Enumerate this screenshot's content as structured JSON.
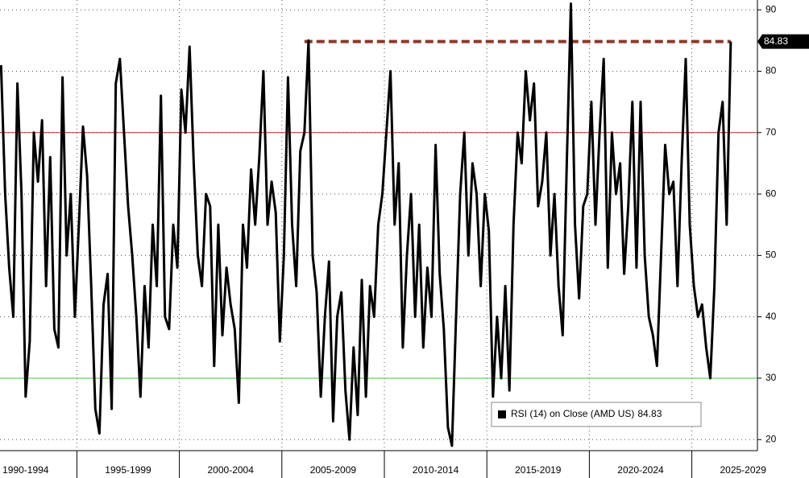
{
  "chart_data": {
    "type": "line",
    "x": [
      1991.3,
      1991.5,
      1991.7,
      1991.9,
      1992.1,
      1992.3,
      1992.5,
      1992.7,
      1992.9,
      1993.1,
      1993.3,
      1993.5,
      1993.7,
      1993.9,
      1994.1,
      1994.3,
      1994.5,
      1994.7,
      1994.9,
      1995.1,
      1995.3,
      1995.5,
      1995.7,
      1995.9,
      1996.1,
      1996.3,
      1996.5,
      1996.7,
      1996.9,
      1997.1,
      1997.3,
      1997.5,
      1997.7,
      1997.9,
      1998.1,
      1998.3,
      1998.5,
      1998.7,
      1998.9,
      1999.1,
      1999.3,
      1999.5,
      1999.7,
      1999.9,
      2000.1,
      2000.3,
      2000.5,
      2000.7,
      2000.9,
      2001.1,
      2001.3,
      2001.5,
      2001.7,
      2001.9,
      2002.1,
      2002.3,
      2002.5,
      2002.7,
      2002.9,
      2003.1,
      2003.3,
      2003.5,
      2003.7,
      2003.9,
      2004.1,
      2004.3,
      2004.5,
      2004.7,
      2004.9,
      2005.1,
      2005.3,
      2005.5,
      2005.7,
      2005.9,
      2006.1,
      2006.3,
      2006.5,
      2006.7,
      2006.9,
      2007.1,
      2007.3,
      2007.5,
      2007.7,
      2007.9,
      2008.1,
      2008.3,
      2008.5,
      2008.7,
      2008.9,
      2009.1,
      2009.3,
      2009.5,
      2009.7,
      2009.9,
      2010.1,
      2010.3,
      2010.5,
      2010.7,
      2010.9,
      2011.1,
      2011.3,
      2011.5,
      2011.7,
      2011.9,
      2012.1,
      2012.3,
      2012.5,
      2012.7,
      2012.9,
      2013.1,
      2013.3,
      2013.5,
      2013.7,
      2013.9,
      2014.1,
      2014.3,
      2014.5,
      2014.7,
      2014.9,
      2015.1,
      2015.3,
      2015.5,
      2015.7,
      2015.9,
      2016.1,
      2016.3,
      2016.5,
      2016.7,
      2016.9,
      2017.1,
      2017.3,
      2017.5,
      2017.7,
      2017.9,
      2018.1,
      2018.3,
      2018.5,
      2018.7,
      2018.9,
      2019.1,
      2019.3,
      2019.5,
      2019.7,
      2019.9,
      2020.1,
      2020.3,
      2020.5,
      2020.7,
      2020.9,
      2021.1,
      2021.3,
      2021.5,
      2021.7,
      2021.9,
      2022.1,
      2022.3,
      2022.5,
      2022.7,
      2022.9,
      2023.1,
      2023.3,
      2023.5,
      2023.7,
      2023.9,
      2024.1,
      2024.3,
      2024.5,
      2024.7,
      2024.9,
      2025.1,
      2025.3,
      2025.5,
      2025.7,
      2025.9,
      2026.1,
      2026.3,
      2026.5,
      2026.7,
      2026.9
    ],
    "series": [
      {
        "name": "RSI (14)  on Close (AMD US)",
        "color": "#000000",
        "values": [
          81,
          60,
          48,
          40,
          78,
          60,
          27,
          36,
          70,
          62,
          72,
          45,
          66,
          38,
          35,
          79,
          50,
          60,
          40,
          55,
          71,
          63,
          45,
          25,
          21,
          42,
          47,
          25,
          78,
          82,
          70,
          58,
          50,
          40,
          27,
          45,
          35,
          55,
          45,
          76,
          40,
          38,
          55,
          48,
          77,
          70,
          84,
          65,
          50,
          45,
          60,
          58,
          32,
          55,
          37,
          48,
          42,
          38,
          26,
          55,
          48,
          64,
          55,
          66,
          80,
          55,
          62,
          57,
          36,
          50,
          79,
          55,
          45,
          67,
          70,
          85,
          50,
          44,
          27,
          40,
          49,
          23,
          40,
          44,
          28,
          20,
          35,
          24,
          46,
          27,
          45,
          40,
          55,
          60,
          70,
          80,
          55,
          65,
          35,
          50,
          60,
          40,
          55,
          35,
          48,
          40,
          68,
          47,
          38,
          22,
          19,
          40,
          60,
          70,
          50,
          65,
          60,
          45,
          60,
          54,
          27,
          40,
          30,
          45,
          28,
          55,
          70,
          65,
          80,
          72,
          78,
          58,
          62,
          70,
          50,
          60,
          45,
          37,
          65,
          91,
          55,
          43,
          58,
          60,
          75,
          55,
          70,
          82,
          48,
          70,
          60,
          65,
          47,
          58,
          75,
          48,
          75,
          50,
          40,
          37,
          32,
          50,
          68,
          60,
          62,
          45,
          65,
          82,
          55,
          45,
          40,
          42,
          35,
          30,
          45,
          70,
          75,
          55,
          84.83
        ]
      }
    ],
    "xlim": [
      1991.25,
      2028.2
    ],
    "xticks": [
      {
        "value": 1992.5,
        "label": "1990-1994"
      },
      {
        "value": 1997.5,
        "label": "1995-1999"
      },
      {
        "value": 2002.5,
        "label": "2000-2004"
      },
      {
        "value": 2007.5,
        "label": "2005-2009"
      },
      {
        "value": 2012.5,
        "label": "2010-2014"
      },
      {
        "value": 2017.5,
        "label": "2015-2019"
      },
      {
        "value": 2022.5,
        "label": "2020-2024"
      },
      {
        "value": 2027.5,
        "label": "2025-2029"
      }
    ],
    "ylim": [
      18.2,
      91.6
    ],
    "yticks": [
      20,
      30,
      40,
      50,
      60,
      70,
      80,
      90
    ],
    "grid": true,
    "reference_lines": [
      {
        "value": 70,
        "color": "#b03020"
      },
      {
        "value": 30,
        "color": "#33cc33"
      },
      {
        "value": 84.83,
        "color": "#8b3a2a",
        "dashed": true,
        "x": [
          2006.1,
          2026.9
        ]
      }
    ],
    "legend": "bottom-right"
  }
}
